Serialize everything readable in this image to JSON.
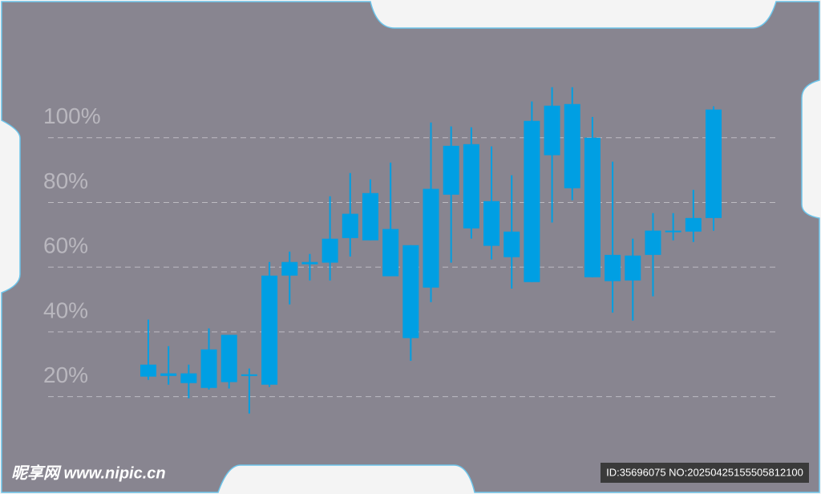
{
  "chart_data": {
    "type": "candlestick",
    "color": "#009fe3",
    "ylim": [
      10,
      120
    ],
    "yticks": [
      {
        "value": 20,
        "label": "20%"
      },
      {
        "value": 40,
        "label": "40%"
      },
      {
        "value": 60,
        "label": "60%"
      },
      {
        "value": 80,
        "label": "80%"
      },
      {
        "value": 100,
        "label": "100%"
      }
    ],
    "grid": true,
    "open": [
      26.2,
      26.4,
      24.2,
      22.7,
      24.5,
      26.4,
      23.7,
      57.4,
      60.9,
      61.4,
      69.0,
      68.3,
      71.8,
      66.8,
      53.7,
      82.4,
      72.0,
      66.6,
      63.1,
      55.4,
      94.6,
      84.4,
      100.0,
      55.7,
      55.9,
      63.8,
      70.8,
      71.0,
      75.2
    ],
    "high": [
      43.8,
      35.6,
      29.9,
      41.1,
      39.1,
      28.7,
      61.6,
      64.8,
      64.1,
      81.9,
      89.1,
      87.1,
      92.3,
      66.8,
      104.7,
      103.5,
      103.2,
      97.3,
      88.4,
      111.2,
      115.6,
      115.6,
      106.4,
      92.6,
      68.8,
      76.7,
      76.7,
      83.9,
      109.7
    ],
    "low": [
      25.2,
      23.7,
      19.5,
      22.2,
      22.5,
      14.8,
      23.0,
      48.5,
      55.9,
      55.9,
      63.3,
      68.3,
      57.2,
      31.1,
      49.2,
      61.4,
      68.8,
      62.4,
      53.4,
      55.4,
      73.8,
      80.7,
      56.9,
      46.0,
      43.5,
      51.0,
      68.3,
      67.8,
      71.3
    ],
    "close": [
      29.9,
      27.2,
      27.2,
      34.6,
      39.1,
      26.9,
      57.4,
      61.6,
      61.6,
      68.8,
      76.5,
      82.9,
      57.2,
      38.1,
      84.2,
      97.5,
      98.0,
      80.4,
      71.0,
      105.2,
      109.9,
      110.4,
      56.9,
      63.8,
      63.6,
      71.3,
      71.3,
      75.2,
      108.7
    ]
  },
  "watermark": {
    "site": "昵享网 www.nipic.cn",
    "id": "ID:35696075 NO:20250425155505812100"
  }
}
